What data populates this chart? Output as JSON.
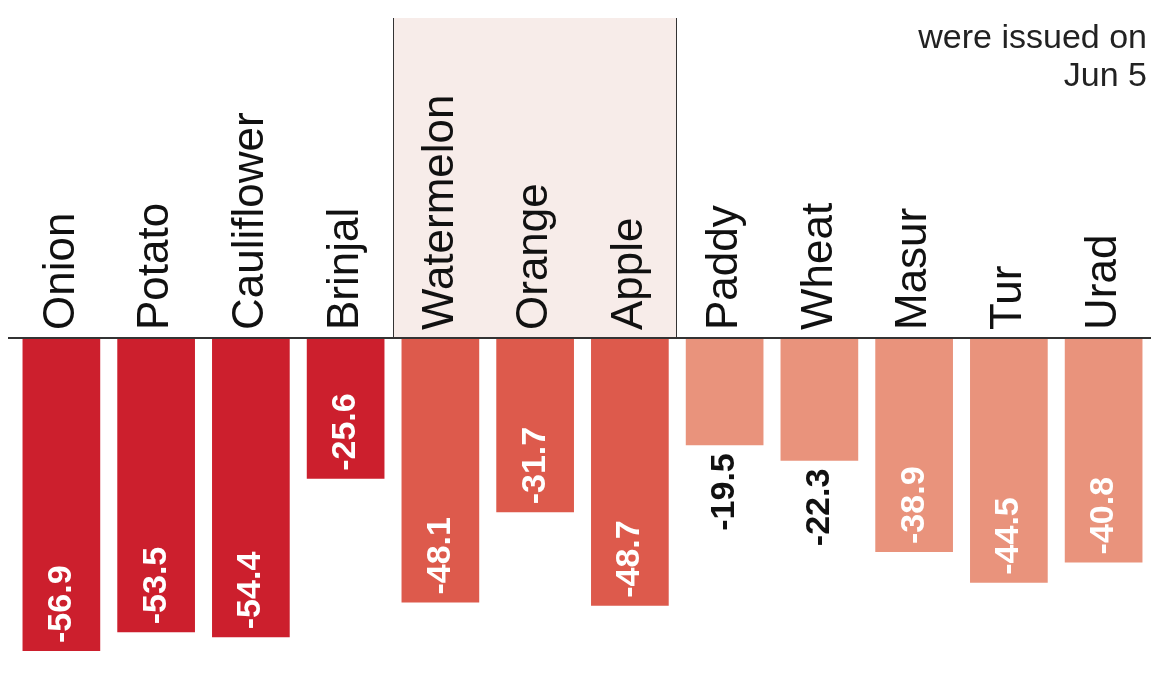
{
  "chart_data": {
    "type": "bar",
    "categories": [
      "Onion",
      "Potato",
      "Cauliflower",
      "Brinjal",
      "Watermelon",
      "Orange",
      "Apple",
      "Paddy",
      "Wheat",
      "Masur",
      "Tur",
      "Urad"
    ],
    "values": [
      -56.9,
      -53.5,
      -54.4,
      -25.6,
      -48.1,
      -31.7,
      -48.7,
      -19.5,
      -22.3,
      -38.9,
      -44.5,
      -40.8
    ],
    "colors": [
      "#cc1f2d",
      "#cc1f2d",
      "#cc1f2d",
      "#cc1f2d",
      "#dd5a4c",
      "#dd5a4c",
      "#dd5a4c",
      "#e9937c",
      "#e9937c",
      "#e9937c",
      "#e9937c",
      "#e9937c"
    ],
    "data_labels": true,
    "legend": false,
    "annotations": [
      "were issued on Jun 5"
    ]
  }
}
